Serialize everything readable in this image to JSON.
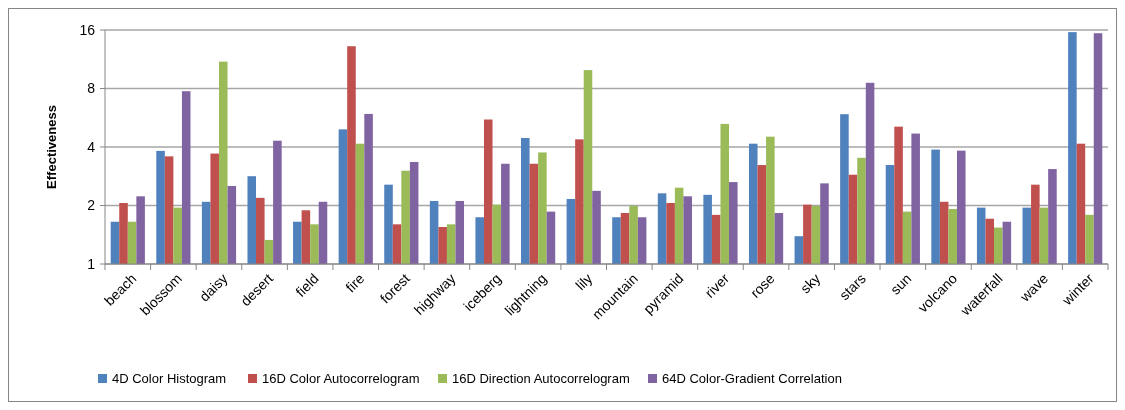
{
  "chart_data": {
    "type": "bar",
    "ylabel": "Effectiveness",
    "log": "y",
    "ylim": [
      1,
      16
    ],
    "yticks": [
      1,
      2,
      4,
      8,
      16
    ],
    "grid": "y",
    "legend": "bottom",
    "categories": [
      "beach",
      "blossom",
      "daisy",
      "desert",
      "field",
      "fire",
      "forest",
      "highway",
      "iceberg",
      "lightning",
      "lily",
      "mountain",
      "pyramid",
      "river",
      "rose",
      "sky",
      "stars",
      "sun",
      "volcano",
      "waterfall",
      "wave",
      "winter"
    ],
    "series": [
      {
        "name": "4D Color Histogram",
        "color": "#4f81bd",
        "values": [
          1.65,
          3.82,
          2.09,
          2.83,
          1.65,
          4.93,
          2.56,
          2.11,
          1.74,
          4.45,
          2.16,
          1.74,
          2.31,
          2.27,
          4.16,
          1.39,
          5.9,
          3.23,
          3.88,
          1.95,
          1.95,
          15.6
        ]
      },
      {
        "name": "16D Color Autocorrelogram",
        "color": "#c0504d",
        "values": [
          2.06,
          3.58,
          3.7,
          2.19,
          1.89,
          13.2,
          1.6,
          1.55,
          5.54,
          3.28,
          4.38,
          1.83,
          2.06,
          1.79,
          3.23,
          2.02,
          2.88,
          5.09,
          2.09,
          1.71,
          2.56,
          4.16
        ]
      },
      {
        "name": "16D Direction Autocorrelogram",
        "color": "#9bbb59",
        "values": [
          1.65,
          1.95,
          11.0,
          1.33,
          1.6,
          4.16,
          3.02,
          1.6,
          2.02,
          3.75,
          9.95,
          1.99,
          2.47,
          5.26,
          4.52,
          1.99,
          3.52,
          1.86,
          1.92,
          1.54,
          1.95,
          1.79
        ]
      },
      {
        "name": "64D Color-Gradient Correlation",
        "color": "#8064a2",
        "values": [
          2.23,
          7.75,
          2.52,
          4.31,
          2.09,
          5.92,
          3.35,
          2.11,
          3.28,
          1.86,
          2.38,
          1.74,
          2.23,
          2.64,
          1.83,
          2.6,
          8.56,
          4.69,
          3.83,
          1.65,
          3.08,
          15.4
        ]
      }
    ]
  }
}
